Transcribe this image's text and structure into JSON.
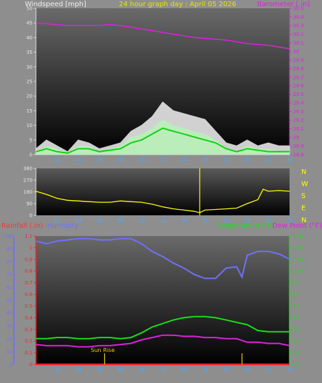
{
  "colors": {
    "background": "#8e8e8e",
    "plot_bg_top": "#5a5a5a",
    "plot_bg_bottom": "#000000",
    "gust": "#f2f2f2",
    "avg_wind": "#b8f0b8",
    "wind_line": "#10d010",
    "barometer": "#e020e0",
    "direction": "#ffff00",
    "rain": "#ff2020",
    "humidity": "#7070ff",
    "temperature": "#18e018",
    "dewpoint": "#e020e0",
    "sunrise": "#e8d000"
  },
  "header": {
    "left_label": "Windspeed [mph]",
    "center_label": "24 hour graph day : April 05 2026",
    "right_label": "Barometer [.in]"
  },
  "chart_data": [
    {
      "name": "wind-barometer",
      "type": "line",
      "x_ticks": [
        "02",
        "04",
        "06",
        "08",
        "10",
        "12",
        "14",
        "16",
        "18",
        "20",
        "22",
        "00"
      ],
      "xlim": [
        0,
        24
      ],
      "y_left": {
        "label": "Windspeed [mph]",
        "range": [
          0,
          50
        ],
        "ticks": [
          "0",
          "5",
          "10",
          "15",
          "20",
          "25",
          "30",
          "35",
          "40",
          "45",
          "50"
        ]
      },
      "y_right": {
        "label": "Barometer [.in]",
        "range": [
          28.8,
          30.5
        ],
        "ticks": [
          "28.8",
          "28.9",
          "29",
          "29.1",
          "29.2",
          "29.3",
          "29.4",
          "29.5",
          "29.6",
          "29.7",
          "29.8",
          "29.9",
          "30",
          "30.1",
          "30.2",
          "30.3",
          "30.4",
          "30.5"
        ]
      },
      "series": [
        {
          "role": "barometer",
          "axis": "right",
          "x": [
            0,
            1,
            2,
            3,
            4,
            5,
            6,
            7,
            8,
            9,
            10,
            11,
            12,
            13,
            14,
            15,
            16,
            17,
            18,
            19,
            20,
            21,
            22,
            23,
            24
          ],
          "y": [
            30.33,
            30.32,
            30.31,
            30.3,
            30.3,
            30.3,
            30.3,
            30.31,
            30.3,
            30.28,
            30.26,
            30.24,
            30.22,
            30.2,
            30.18,
            30.16,
            30.15,
            30.14,
            30.13,
            30.11,
            30.09,
            30.08,
            30.07,
            30.05,
            30.03
          ]
        },
        {
          "role": "gust",
          "axis": "left",
          "x": [
            0,
            1,
            2,
            3,
            4,
            5,
            6,
            7,
            8,
            9,
            10,
            11,
            12,
            13,
            14,
            15,
            16,
            17,
            18,
            19,
            20,
            21,
            22,
            23,
            24
          ],
          "y": [
            2,
            5,
            3,
            1,
            5,
            4,
            2,
            3,
            4,
            8,
            10,
            13,
            18,
            15,
            14,
            13,
            12,
            8,
            4,
            3,
            5,
            3,
            4,
            3,
            3
          ]
        },
        {
          "role": "avg_wind",
          "axis": "left",
          "x": [
            0,
            1,
            2,
            3,
            4,
            5,
            6,
            7,
            8,
            9,
            10,
            11,
            12,
            13,
            14,
            15,
            16,
            17,
            18,
            19,
            20,
            21,
            22,
            23,
            24
          ],
          "y": [
            1,
            3,
            2,
            0.5,
            3,
            3,
            1,
            2,
            3,
            6,
            7,
            9,
            12,
            10,
            9,
            8,
            7,
            5,
            2,
            1,
            3,
            2,
            2,
            1,
            1
          ]
        },
        {
          "role": "wind_line",
          "axis": "left",
          "x": [
            0,
            1,
            2,
            3,
            4,
            5,
            6,
            7,
            8,
            9,
            10,
            11,
            12,
            13,
            14,
            15,
            16,
            17,
            18,
            19,
            20,
            21,
            22,
            23,
            24
          ],
          "y": [
            1,
            2,
            1,
            0.5,
            2,
            2,
            1,
            1.5,
            2,
            4,
            5,
            7,
            9,
            8,
            7,
            6,
            5,
            4,
            2,
            1,
            2,
            1.5,
            1,
            1,
            1
          ]
        }
      ]
    },
    {
      "name": "wind-direction",
      "type": "line",
      "x_ticks": [
        "02",
        "04",
        "06",
        "08",
        "10",
        "12",
        "14",
        "16",
        "18",
        "20",
        "22",
        "00"
      ],
      "xlim": [
        0,
        24
      ],
      "y_left": {
        "range": [
          0,
          360
        ],
        "ticks": [
          "0",
          "90",
          "180",
          "270",
          "360"
        ]
      },
      "compass": [
        "N",
        "W",
        "S",
        "E",
        "N"
      ],
      "series": [
        {
          "role": "direction",
          "x": [
            0,
            1,
            2,
            3,
            4,
            5,
            6,
            7,
            8,
            9,
            10,
            11,
            12,
            13,
            14,
            15,
            15.5,
            16,
            17,
            18,
            19,
            20,
            21,
            21.5,
            22,
            23,
            24
          ],
          "y": [
            185,
            160,
            130,
            115,
            110,
            105,
            100,
            100,
            110,
            105,
            100,
            85,
            65,
            50,
            40,
            30,
            20,
            40,
            45,
            50,
            55,
            90,
            120,
            200,
            185,
            190,
            185
          ]
        }
      ]
    },
    {
      "name": "rain-humidity-temperature",
      "type": "line",
      "header": {
        "rain_label": "Rainfall (.in)",
        "humidity_label": "Humidity",
        "temp_label": "Temperature (°F)",
        "dew_label": "Dew Point (°F)"
      },
      "x_ticks": [
        "02",
        "04",
        "06",
        "08",
        "10",
        "12",
        "14",
        "16",
        "18",
        "20",
        "22",
        "00"
      ],
      "xlim": [
        0,
        24
      ],
      "y_humidity": {
        "range": [
          0,
          100
        ],
        "ticks": [
          "0",
          "10",
          "20",
          "30",
          "40",
          "50",
          "60",
          "70",
          "80",
          "90",
          "100"
        ]
      },
      "y_rain": {
        "range": [
          0,
          1.1
        ],
        "ticks": [
          "0",
          "0.1",
          "0.2",
          "0.3",
          "0.4",
          "0.5",
          "0.6",
          "0.7",
          "0.8",
          "0.9",
          "1",
          "1.1"
        ]
      },
      "y_temp": {
        "range": [
          20,
          130
        ],
        "ticks": [
          "20",
          "30",
          "40",
          "50",
          "60",
          "70",
          "80",
          "90",
          "100",
          "110",
          "120",
          "130"
        ]
      },
      "annotation": {
        "label": "Sun Rise",
        "x": 6.5
      },
      "series": [
        {
          "role": "humidity",
          "axis": "humidity",
          "x": [
            0,
            1,
            2,
            3,
            4,
            5,
            6,
            7,
            8,
            9,
            10,
            11,
            12,
            13,
            14,
            15,
            16,
            17,
            18,
            19,
            19.5,
            20,
            21,
            22,
            23,
            24
          ],
          "y": [
            96,
            94,
            96,
            97,
            98,
            98,
            97,
            97,
            98,
            98,
            94,
            88,
            84,
            79,
            75,
            70,
            67,
            67,
            75,
            76,
            68,
            85,
            88,
            88,
            86,
            82
          ]
        },
        {
          "role": "temperature",
          "axis": "temp",
          "x": [
            0,
            1,
            2,
            3,
            4,
            5,
            6,
            7,
            8,
            9,
            10,
            11,
            12,
            13,
            14,
            15,
            16,
            17,
            18,
            19,
            20,
            21,
            22,
            23,
            24
          ],
          "y": [
            42,
            42,
            43,
            43,
            42,
            42,
            43,
            43,
            42,
            43,
            47,
            52,
            55,
            58,
            60,
            61,
            61,
            60,
            58,
            56,
            54,
            49,
            48,
            48,
            48
          ]
        },
        {
          "role": "dewpoint",
          "axis": "temp",
          "x": [
            0,
            1,
            2,
            3,
            4,
            5,
            6,
            7,
            8,
            9,
            10,
            11,
            12,
            13,
            14,
            15,
            16,
            17,
            18,
            19,
            20,
            21,
            22,
            23,
            24
          ],
          "y": [
            37,
            36,
            36,
            36,
            35,
            35,
            36,
            36,
            37,
            38,
            41,
            43,
            45,
            45,
            44,
            44,
            43,
            43,
            42,
            42,
            39,
            39,
            38,
            38,
            36
          ]
        },
        {
          "role": "rain",
          "axis": "rain",
          "x": [
            0,
            24
          ],
          "y": [
            0,
            0
          ]
        }
      ]
    }
  ]
}
